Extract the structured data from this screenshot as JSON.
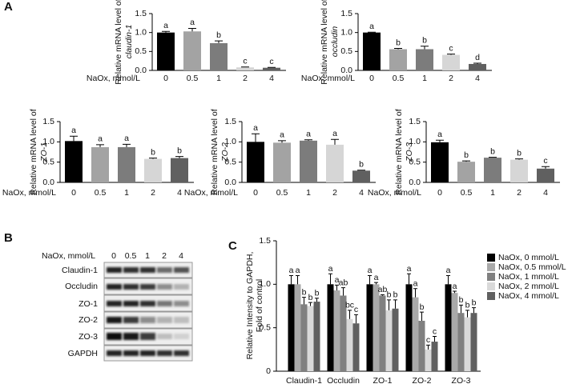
{
  "panel_labels": [
    "A",
    "B",
    "C"
  ],
  "chart_data": [
    {
      "type": "bar",
      "ylabel": "Relative mRNA level of",
      "ylabel_gene": "claudin-1",
      "xlabel": "NaOx, mmol/L",
      "categories": [
        "0",
        "0.5",
        "1",
        "2",
        "4"
      ],
      "values": [
        1.0,
        1.03,
        0.72,
        0.08,
        0.07
      ],
      "errors": [
        0.03,
        0.08,
        0.06,
        0.01,
        0.01
      ],
      "letters": [
        "a",
        "a",
        "b",
        "c",
        "c"
      ],
      "colors": [
        "#000000",
        "#a3a3a3",
        "#7c7c7c",
        "#d6d6d6",
        "#606060"
      ],
      "ylim": [
        0,
        1.5
      ],
      "yticks": [
        {
          "value": 0,
          "label": "0.0"
        },
        0.5,
        {
          "value": 1,
          "label": "1.0"
        },
        1.5
      ]
    },
    {
      "type": "bar",
      "ylabel": "Relative mRNA level of",
      "ylabel_gene": "occludin",
      "xlabel": "NaOx, mmol/L",
      "categories": [
        "0",
        "0.5",
        "1",
        "2",
        "4"
      ],
      "values": [
        1.0,
        0.56,
        0.56,
        0.41,
        0.17
      ],
      "errors": [
        0.01,
        0.02,
        0.08,
        0.02,
        0.02
      ],
      "letters": [
        "a",
        "b",
        "b",
        "c",
        "d"
      ],
      "colors": [
        "#000000",
        "#a3a3a3",
        "#7c7c7c",
        "#d6d6d6",
        "#606060"
      ],
      "ylim": [
        0,
        1.5
      ],
      "yticks": [
        {
          "value": 0,
          "label": "0.0"
        },
        0.5,
        {
          "value": 1,
          "label": "1.0"
        },
        1.5
      ]
    },
    {
      "type": "bar",
      "ylabel": "Relative mRNA level of",
      "ylabel_gene": "ZO-1",
      "xlabel": "NaOx, mmol/L",
      "categories": [
        "0",
        "0.5",
        "1",
        "2",
        "4"
      ],
      "values": [
        1.02,
        0.87,
        0.87,
        0.58,
        0.6
      ],
      "errors": [
        0.12,
        0.06,
        0.07,
        0.02,
        0.04
      ],
      "letters": [
        "a",
        "a",
        "a",
        "b",
        "b"
      ],
      "colors": [
        "#000000",
        "#a3a3a3",
        "#7c7c7c",
        "#d6d6d6",
        "#606060"
      ],
      "ylim": [
        0,
        1.5
      ],
      "yticks": [
        {
          "value": 0,
          "label": "0.0"
        },
        0.5,
        {
          "value": 1,
          "label": "1.0"
        },
        1.5
      ]
    },
    {
      "type": "bar",
      "ylabel": "Relative mRNA level of",
      "ylabel_gene": "ZO-2",
      "xlabel": "NaOx, mmol/L",
      "categories": [
        "0",
        "0.5",
        "1",
        "2",
        "4"
      ],
      "values": [
        1.0,
        0.98,
        1.03,
        0.93,
        0.29
      ],
      "errors": [
        0.2,
        0.05,
        0.02,
        0.13,
        0.01
      ],
      "letters": [
        "a",
        "a",
        "a",
        "a",
        "b"
      ],
      "colors": [
        "#000000",
        "#a3a3a3",
        "#7c7c7c",
        "#d6d6d6",
        "#606060"
      ],
      "ylim": [
        0,
        1.5
      ],
      "yticks": [
        {
          "value": 0,
          "label": "0.0"
        },
        0.5,
        {
          "value": 1,
          "label": "1.0"
        },
        1.5
      ]
    },
    {
      "type": "bar",
      "ylabel": "Relative mRNA level of",
      "ylabel_gene": "ZO-3",
      "xlabel": "NaOx, mmol/L",
      "categories": [
        "0",
        "0.5",
        "1",
        "2",
        "4"
      ],
      "values": [
        0.99,
        0.51,
        0.61,
        0.56,
        0.34
      ],
      "errors": [
        0.05,
        0.02,
        0.01,
        0.02,
        0.05
      ],
      "letters": [
        "a",
        "b",
        "b",
        "b",
        "c"
      ],
      "colors": [
        "#000000",
        "#a3a3a3",
        "#7c7c7c",
        "#d6d6d6",
        "#606060"
      ],
      "ylim": [
        0,
        1.5
      ],
      "yticks": [
        {
          "value": 0,
          "label": "0.0"
        },
        0.5,
        {
          "value": 1,
          "label": "1.0"
        },
        1.5
      ]
    },
    {
      "type": "grouped_bar",
      "ylabel": [
        "Relative Intensity to GAPDH,",
        "Fold of control"
      ],
      "categories": [
        "Claudin-1",
        "Occludin",
        "ZO-1",
        "ZO-2",
        "ZO-3"
      ],
      "legend": "right",
      "ylim": [
        0,
        1.5
      ],
      "yticks": [
        0,
        0.5,
        {
          "value": 1,
          "label": "1.0"
        },
        1.5
      ],
      "series": [
        {
          "name": "NaOx, 0 mmol/L",
          "color": "#000000",
          "values": [
            1,
            1,
            1,
            1,
            1
          ],
          "errors": [
            0.1,
            0.12,
            0.1,
            0.12,
            0.1
          ],
          "letters": [
            "a",
            "a",
            "a",
            "a",
            "a"
          ]
        },
        {
          "name": "NaOx, 0.5 mmol/L",
          "color": "#a9a9a9",
          "values": [
            1.0,
            0.93,
            1.0,
            0.85,
            0.9
          ],
          "errors": [
            0.1,
            0.06,
            0.02,
            0.1,
            0.02
          ],
          "letters": [
            "a",
            "a",
            "a",
            "a",
            "a"
          ]
        },
        {
          "name": "NaOx, 1 mmol/L",
          "color": "#808080",
          "values": [
            0.77,
            0.87,
            0.87,
            0.58,
            0.67
          ],
          "errors": [
            0.08,
            0.09,
            0.01,
            0.1,
            0.09
          ],
          "letters": [
            "b",
            "ab",
            "ab",
            "b",
            "b"
          ]
        },
        {
          "name": "NaOx, 2 mmol/L",
          "color": "#d9d9d9",
          "values": [
            0.75,
            0.6,
            0.7,
            0.25,
            0.62
          ],
          "errors": [
            0.04,
            0.1,
            0.12,
            0.05,
            0.08
          ],
          "letters": [
            "b",
            "bc",
            "b",
            "c",
            "b"
          ]
        },
        {
          "name": "NaOx, 4 mmol/L",
          "color": "#606060",
          "values": [
            0.8,
            0.55,
            0.72,
            0.34,
            0.67
          ],
          "errors": [
            0.04,
            0.1,
            0.1,
            0.06,
            0.06
          ],
          "letters": [
            "b",
            "c",
            "b",
            "c",
            "b"
          ]
        }
      ]
    }
  ],
  "blot": {
    "xlabel": "NaOx, mmol/L",
    "lanes": [
      "0",
      "0.5",
      "1",
      "2",
      "4"
    ],
    "rows": [
      "Claudin-1",
      "Occludin",
      "ZO-1",
      "ZO-2",
      "ZO-3",
      "GAPDH"
    ]
  }
}
